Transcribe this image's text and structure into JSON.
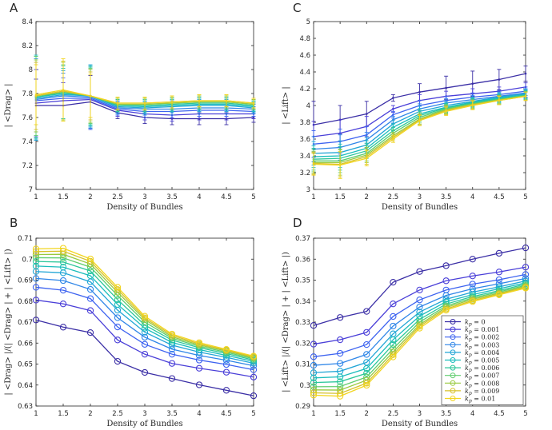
{
  "chart_data": [
    {
      "type": "line",
      "panel": "A",
      "title": "",
      "xlabel": "Density of Bundles",
      "ylabel": "| <Drag> |",
      "xlim": [
        1,
        5
      ],
      "ylim": [
        7,
        8.4
      ],
      "xticks": [
        "1",
        "1.5",
        "2",
        "2.5",
        "3",
        "3.5",
        "4",
        "4.5",
        "5"
      ],
      "yticks": [
        "7",
        "7.2",
        "7.4",
        "7.6",
        "7.8",
        "8",
        "8.2",
        "8.4"
      ],
      "error_bars": true,
      "x": [
        1,
        1.5,
        2,
        2.5,
        3,
        3.5,
        4,
        4.5,
        5
      ],
      "series": [
        {
          "name": "kp = 0",
          "values": [
            7.7,
            7.7,
            7.73,
            7.64,
            7.6,
            7.59,
            7.59,
            7.59,
            7.6
          ],
          "err": [
            0.22,
            0.12,
            0.22,
            0.05,
            0.05,
            0.05,
            0.05,
            0.05,
            0.04
          ]
        },
        {
          "name": "kp = 0.001",
          "values": [
            7.72,
            7.74,
            7.75,
            7.66,
            7.63,
            7.62,
            7.63,
            7.63,
            7.63
          ],
          "err": [
            0.28,
            0.15,
            0.25,
            0.05,
            0.05,
            0.05,
            0.05,
            0.05,
            0.04
          ]
        },
        {
          "name": "kp = 0.002",
          "values": [
            7.74,
            7.76,
            7.76,
            7.67,
            7.65,
            7.65,
            7.66,
            7.66,
            7.65
          ],
          "err": [
            0.32,
            0.17,
            0.26,
            0.05,
            0.05,
            0.05,
            0.05,
            0.05,
            0.04
          ]
        },
        {
          "name": "kp = 0.003",
          "values": [
            7.75,
            7.78,
            7.77,
            7.68,
            7.67,
            7.67,
            7.68,
            7.68,
            7.67
          ],
          "err": [
            0.34,
            0.19,
            0.26,
            0.05,
            0.05,
            0.05,
            0.05,
            0.05,
            0.04
          ]
        },
        {
          "name": "kp = 0.004",
          "values": [
            7.76,
            7.79,
            7.78,
            7.69,
            7.68,
            7.69,
            7.7,
            7.7,
            7.68
          ],
          "err": [
            0.35,
            0.2,
            0.26,
            0.05,
            0.05,
            0.05,
            0.05,
            0.05,
            0.04
          ]
        },
        {
          "name": "kp = 0.005",
          "values": [
            7.77,
            7.8,
            7.78,
            7.7,
            7.69,
            7.7,
            7.71,
            7.71,
            7.69
          ],
          "err": [
            0.35,
            0.21,
            0.25,
            0.05,
            0.05,
            0.05,
            0.05,
            0.05,
            0.04
          ]
        },
        {
          "name": "kp = 0.006",
          "values": [
            7.77,
            7.81,
            7.78,
            7.7,
            7.7,
            7.71,
            7.72,
            7.72,
            7.7
          ],
          "err": [
            0.34,
            0.22,
            0.24,
            0.05,
            0.05,
            0.05,
            0.05,
            0.05,
            0.04
          ]
        },
        {
          "name": "kp = 0.007",
          "values": [
            7.78,
            7.81,
            7.78,
            7.71,
            7.71,
            7.72,
            7.73,
            7.73,
            7.71
          ],
          "err": [
            0.33,
            0.23,
            0.23,
            0.05,
            0.05,
            0.05,
            0.05,
            0.05,
            0.04
          ]
        },
        {
          "name": "kp = 0.008",
          "values": [
            7.78,
            7.82,
            7.78,
            7.71,
            7.71,
            7.72,
            7.73,
            7.73,
            7.71
          ],
          "err": [
            0.3,
            0.24,
            0.22,
            0.05,
            0.05,
            0.05,
            0.05,
            0.05,
            0.04
          ]
        },
        {
          "name": "kp = 0.009",
          "values": [
            7.78,
            7.82,
            7.78,
            7.72,
            7.72,
            7.73,
            7.74,
            7.74,
            7.72
          ],
          "err": [
            0.28,
            0.25,
            0.2,
            0.05,
            0.05,
            0.05,
            0.05,
            0.05,
            0.04
          ]
        },
        {
          "name": "kp = 0.01",
          "values": [
            7.79,
            7.83,
            7.78,
            7.72,
            7.72,
            7.73,
            7.74,
            7.74,
            7.72
          ],
          "err": [
            0.25,
            0.26,
            0.18,
            0.05,
            0.05,
            0.05,
            0.05,
            0.05,
            0.04
          ]
        }
      ]
    },
    {
      "type": "line",
      "panel": "C",
      "title": "",
      "xlabel": "Density of Bundles",
      "ylabel": "| <Lift> |",
      "xlim": [
        1,
        5
      ],
      "ylim": [
        3,
        5
      ],
      "xticks": [
        "1",
        "1.5",
        "2",
        "2.5",
        "3",
        "3.5",
        "4",
        "4.5",
        "5"
      ],
      "yticks": [
        "3",
        "3.2",
        "3.4",
        "3.6",
        "3.8",
        "4",
        "4.2",
        "4.4",
        "4.6",
        "4.8",
        "5"
      ],
      "error_bars": true,
      "x": [
        1,
        1.5,
        2,
        2.5,
        3,
        3.5,
        4,
        4.5,
        5
      ],
      "series": [
        {
          "name": "kp = 0",
          "values": [
            3.77,
            3.83,
            3.9,
            4.09,
            4.16,
            4.21,
            4.26,
            4.31,
            4.38
          ],
          "err": [
            0.28,
            0.17,
            0.15,
            0.04,
            0.1,
            0.14,
            0.15,
            0.12,
            0.09
          ]
        },
        {
          "name": "kp = 0.001",
          "values": [
            3.63,
            3.67,
            3.75,
            3.96,
            4.06,
            4.11,
            4.14,
            4.17,
            4.22
          ],
          "err": [
            0.18,
            0.16,
            0.12,
            0.04,
            0.07,
            0.06,
            0.06,
            0.05,
            0.05
          ]
        },
        {
          "name": "kp = 0.002",
          "values": [
            3.54,
            3.57,
            3.65,
            3.89,
            4.0,
            4.06,
            4.1,
            4.13,
            4.17
          ],
          "err": [
            0.16,
            0.15,
            0.1,
            0.04,
            0.06,
            0.05,
            0.05,
            0.05,
            0.05
          ]
        },
        {
          "name": "kp = 0.003",
          "values": [
            3.48,
            3.5,
            3.59,
            3.83,
            3.96,
            4.03,
            4.07,
            4.11,
            4.15
          ],
          "err": [
            0.15,
            0.15,
            0.09,
            0.04,
            0.06,
            0.05,
            0.05,
            0.05,
            0.05
          ]
        },
        {
          "name": "kp = 0.004",
          "values": [
            3.43,
            3.44,
            3.53,
            3.78,
            3.93,
            4.0,
            4.05,
            4.1,
            4.14
          ],
          "err": [
            0.14,
            0.14,
            0.09,
            0.04,
            0.06,
            0.05,
            0.05,
            0.05,
            0.05
          ]
        },
        {
          "name": "kp = 0.005",
          "values": [
            3.39,
            3.4,
            3.49,
            3.74,
            3.9,
            3.98,
            4.04,
            4.09,
            4.13
          ],
          "err": [
            0.13,
            0.14,
            0.09,
            0.04,
            0.06,
            0.05,
            0.05,
            0.05,
            0.05
          ]
        },
        {
          "name": "kp = 0.006",
          "values": [
            3.36,
            3.37,
            3.46,
            3.7,
            3.88,
            3.97,
            4.03,
            4.08,
            4.12
          ],
          "err": [
            0.13,
            0.14,
            0.09,
            0.04,
            0.06,
            0.05,
            0.05,
            0.05,
            0.05
          ]
        },
        {
          "name": "kp = 0.007",
          "values": [
            3.34,
            3.34,
            3.43,
            3.67,
            3.86,
            3.96,
            4.02,
            4.07,
            4.12
          ],
          "err": [
            0.13,
            0.14,
            0.09,
            0.04,
            0.06,
            0.05,
            0.05,
            0.05,
            0.05
          ]
        },
        {
          "name": "kp = 0.008",
          "values": [
            3.32,
            3.32,
            3.41,
            3.64,
            3.84,
            3.95,
            4.01,
            4.07,
            4.11
          ],
          "err": [
            0.13,
            0.15,
            0.09,
            0.04,
            0.06,
            0.05,
            0.05,
            0.05,
            0.05
          ]
        },
        {
          "name": "kp = 0.009",
          "values": [
            3.31,
            3.3,
            3.39,
            3.62,
            3.83,
            3.94,
            4.01,
            4.06,
            4.11
          ],
          "err": [
            0.13,
            0.15,
            0.09,
            0.04,
            0.06,
            0.05,
            0.05,
            0.05,
            0.05
          ]
        },
        {
          "name": "kp = 0.01",
          "values": [
            3.3,
            3.29,
            3.37,
            3.6,
            3.82,
            3.93,
            4.0,
            4.06,
            4.11
          ],
          "err": [
            0.13,
            0.16,
            0.09,
            0.04,
            0.06,
            0.05,
            0.05,
            0.05,
            0.05
          ]
        }
      ]
    },
    {
      "type": "line",
      "panel": "B",
      "title": "",
      "xlabel": "Density of Bundles",
      "ylabel": "| <Drag> |/(| <Drag> | + | <Lift> |)",
      "xlim": [
        1,
        5
      ],
      "ylim": [
        0.63,
        0.71
      ],
      "xticks": [
        "1",
        "1.5",
        "2",
        "2.5",
        "3",
        "3.5",
        "4",
        "4.5",
        "5"
      ],
      "yticks": [
        "0.63",
        "0.64",
        "0.65",
        "0.66",
        "0.67",
        "0.68",
        "0.69",
        "0.7",
        "0.71"
      ],
      "marker": "circle",
      "x": [
        1,
        1.5,
        2,
        2.5,
        3,
        3.5,
        4,
        4.5,
        5
      ],
      "series": [
        {
          "name": "kp = 0",
          "values": [
            0.671,
            0.6676,
            0.665,
            0.6513,
            0.646,
            0.6431,
            0.6401,
            0.6375,
            0.6349
          ]
        },
        {
          "name": "kp = 0.001",
          "values": [
            0.6805,
            0.6787,
            0.6755,
            0.6615,
            0.6547,
            0.6503,
            0.648,
            0.6461,
            0.6438
          ]
        },
        {
          "name": "kp = 0.002",
          "values": [
            0.6866,
            0.6852,
            0.6812,
            0.6677,
            0.6594,
            0.6547,
            0.6519,
            0.6498,
            0.6473
          ]
        },
        {
          "name": "kp = 0.003",
          "values": [
            0.6908,
            0.6898,
            0.6856,
            0.6721,
            0.6628,
            0.6571,
            0.6541,
            0.6518,
            0.6492
          ]
        },
        {
          "name": "kp = 0.004",
          "values": [
            0.6941,
            0.6935,
            0.6892,
            0.6757,
            0.6652,
            0.659,
            0.6557,
            0.6532,
            0.6504
          ]
        },
        {
          "name": "kp = 0.005",
          "values": [
            0.6967,
            0.6962,
            0.6921,
            0.6784,
            0.6671,
            0.6603,
            0.6569,
            0.6541,
            0.6513
          ]
        },
        {
          "name": "kp = 0.006",
          "values": [
            0.6989,
            0.6986,
            0.6944,
            0.6807,
            0.6686,
            0.6614,
            0.6578,
            0.655,
            0.6519
          ]
        },
        {
          "name": "kp = 0.007",
          "values": [
            0.7007,
            0.7006,
            0.6962,
            0.6827,
            0.67,
            0.6623,
            0.6585,
            0.6556,
            0.6525
          ]
        },
        {
          "name": "kp = 0.008",
          "values": [
            0.7022,
            0.7023,
            0.6977,
            0.6842,
            0.6712,
            0.663,
            0.6591,
            0.6562,
            0.653
          ]
        },
        {
          "name": "kp = 0.009",
          "values": [
            0.7036,
            0.7038,
            0.699,
            0.6855,
            0.672,
            0.6637,
            0.6596,
            0.6566,
            0.6534
          ]
        },
        {
          "name": "kp = 0.01",
          "values": [
            0.7049,
            0.7052,
            0.7001,
            0.6866,
            0.6728,
            0.6643,
            0.6602,
            0.657,
            0.6538
          ]
        }
      ]
    },
    {
      "type": "line",
      "panel": "D",
      "title": "",
      "xlabel": "Density of Bundles",
      "ylabel": "| <Lift> |/(| <Drag> | + | <Lift> |)",
      "xlim": [
        1,
        5
      ],
      "ylim": [
        0.29,
        0.37
      ],
      "xticks": [
        "1",
        "1.5",
        "2",
        "2.5",
        "3",
        "3.5",
        "4",
        "4.5",
        "5"
      ],
      "yticks": [
        "0.29",
        "0.3",
        "0.31",
        "0.32",
        "0.33",
        "0.34",
        "0.35",
        "0.36",
        "0.37"
      ],
      "marker": "circle",
      "x": [
        1,
        1.5,
        2,
        2.5,
        3,
        3.5,
        4,
        4.5,
        5
      ],
      "legend_position": "bottom-right",
      "series": [
        {
          "name": "kp = 0",
          "values": [
            0.3284,
            0.3322,
            0.3351,
            0.349,
            0.3541,
            0.3569,
            0.36,
            0.3628,
            0.3654
          ]
        },
        {
          "name": "kp = 0.001",
          "values": [
            0.3195,
            0.3216,
            0.3251,
            0.3387,
            0.3453,
            0.3497,
            0.352,
            0.3539,
            0.3562
          ]
        },
        {
          "name": "kp = 0.002",
          "values": [
            0.3135,
            0.3151,
            0.3193,
            0.3327,
            0.3406,
            0.3453,
            0.3481,
            0.3502,
            0.3527
          ]
        },
        {
          "name": "kp = 0.003",
          "values": [
            0.3094,
            0.3103,
            0.3146,
            0.3281,
            0.3372,
            0.3427,
            0.3459,
            0.3483,
            0.3508
          ]
        },
        {
          "name": "kp = 0.004",
          "values": [
            0.3059,
            0.3066,
            0.3108,
            0.3244,
            0.3348,
            0.3409,
            0.3443,
            0.3468,
            0.3496
          ]
        },
        {
          "name": "kp = 0.005",
          "values": [
            0.3034,
            0.3039,
            0.3079,
            0.3216,
            0.3329,
            0.3397,
            0.3431,
            0.3459,
            0.3487
          ]
        },
        {
          "name": "kp = 0.006",
          "values": [
            0.3012,
            0.3016,
            0.3056,
            0.3193,
            0.3313,
            0.3386,
            0.3422,
            0.345,
            0.3481
          ]
        },
        {
          "name": "kp = 0.007",
          "values": [
            0.2992,
            0.2993,
            0.3038,
            0.3173,
            0.33,
            0.3377,
            0.3415,
            0.3444,
            0.3475
          ]
        },
        {
          "name": "kp = 0.008",
          "values": [
            0.2977,
            0.2976,
            0.3023,
            0.3158,
            0.3288,
            0.337,
            0.3409,
            0.3438,
            0.347
          ]
        },
        {
          "name": "kp = 0.009",
          "values": [
            0.2963,
            0.296,
            0.3009,
            0.3145,
            0.328,
            0.3363,
            0.3403,
            0.3434,
            0.3466
          ]
        },
        {
          "name": "kp = 0.01",
          "values": [
            0.2952,
            0.2947,
            0.2999,
            0.3134,
            0.3271,
            0.3357,
            0.3398,
            0.343,
            0.3462
          ]
        }
      ]
    }
  ],
  "legend": {
    "symbol": "k",
    "subscript": "p",
    "entries": [
      "= 0",
      "= 0.001",
      "= 0.002",
      "= 0.003",
      "= 0.004",
      "= 0.005",
      "= 0.006",
      "= 0.007",
      "= 0.008",
      "= 0.009",
      "= 0.01"
    ]
  },
  "panel_letters": [
    "A",
    "C",
    "B",
    "D"
  ],
  "series_colors": [
    "#3b2fa6",
    "#4a3fd8",
    "#3d63f0",
    "#2f86e8",
    "#22a6d6",
    "#1bbdbc",
    "#2cc79a",
    "#5fcd6e",
    "#99c93f",
    "#d7c22a",
    "#f2d51f"
  ]
}
